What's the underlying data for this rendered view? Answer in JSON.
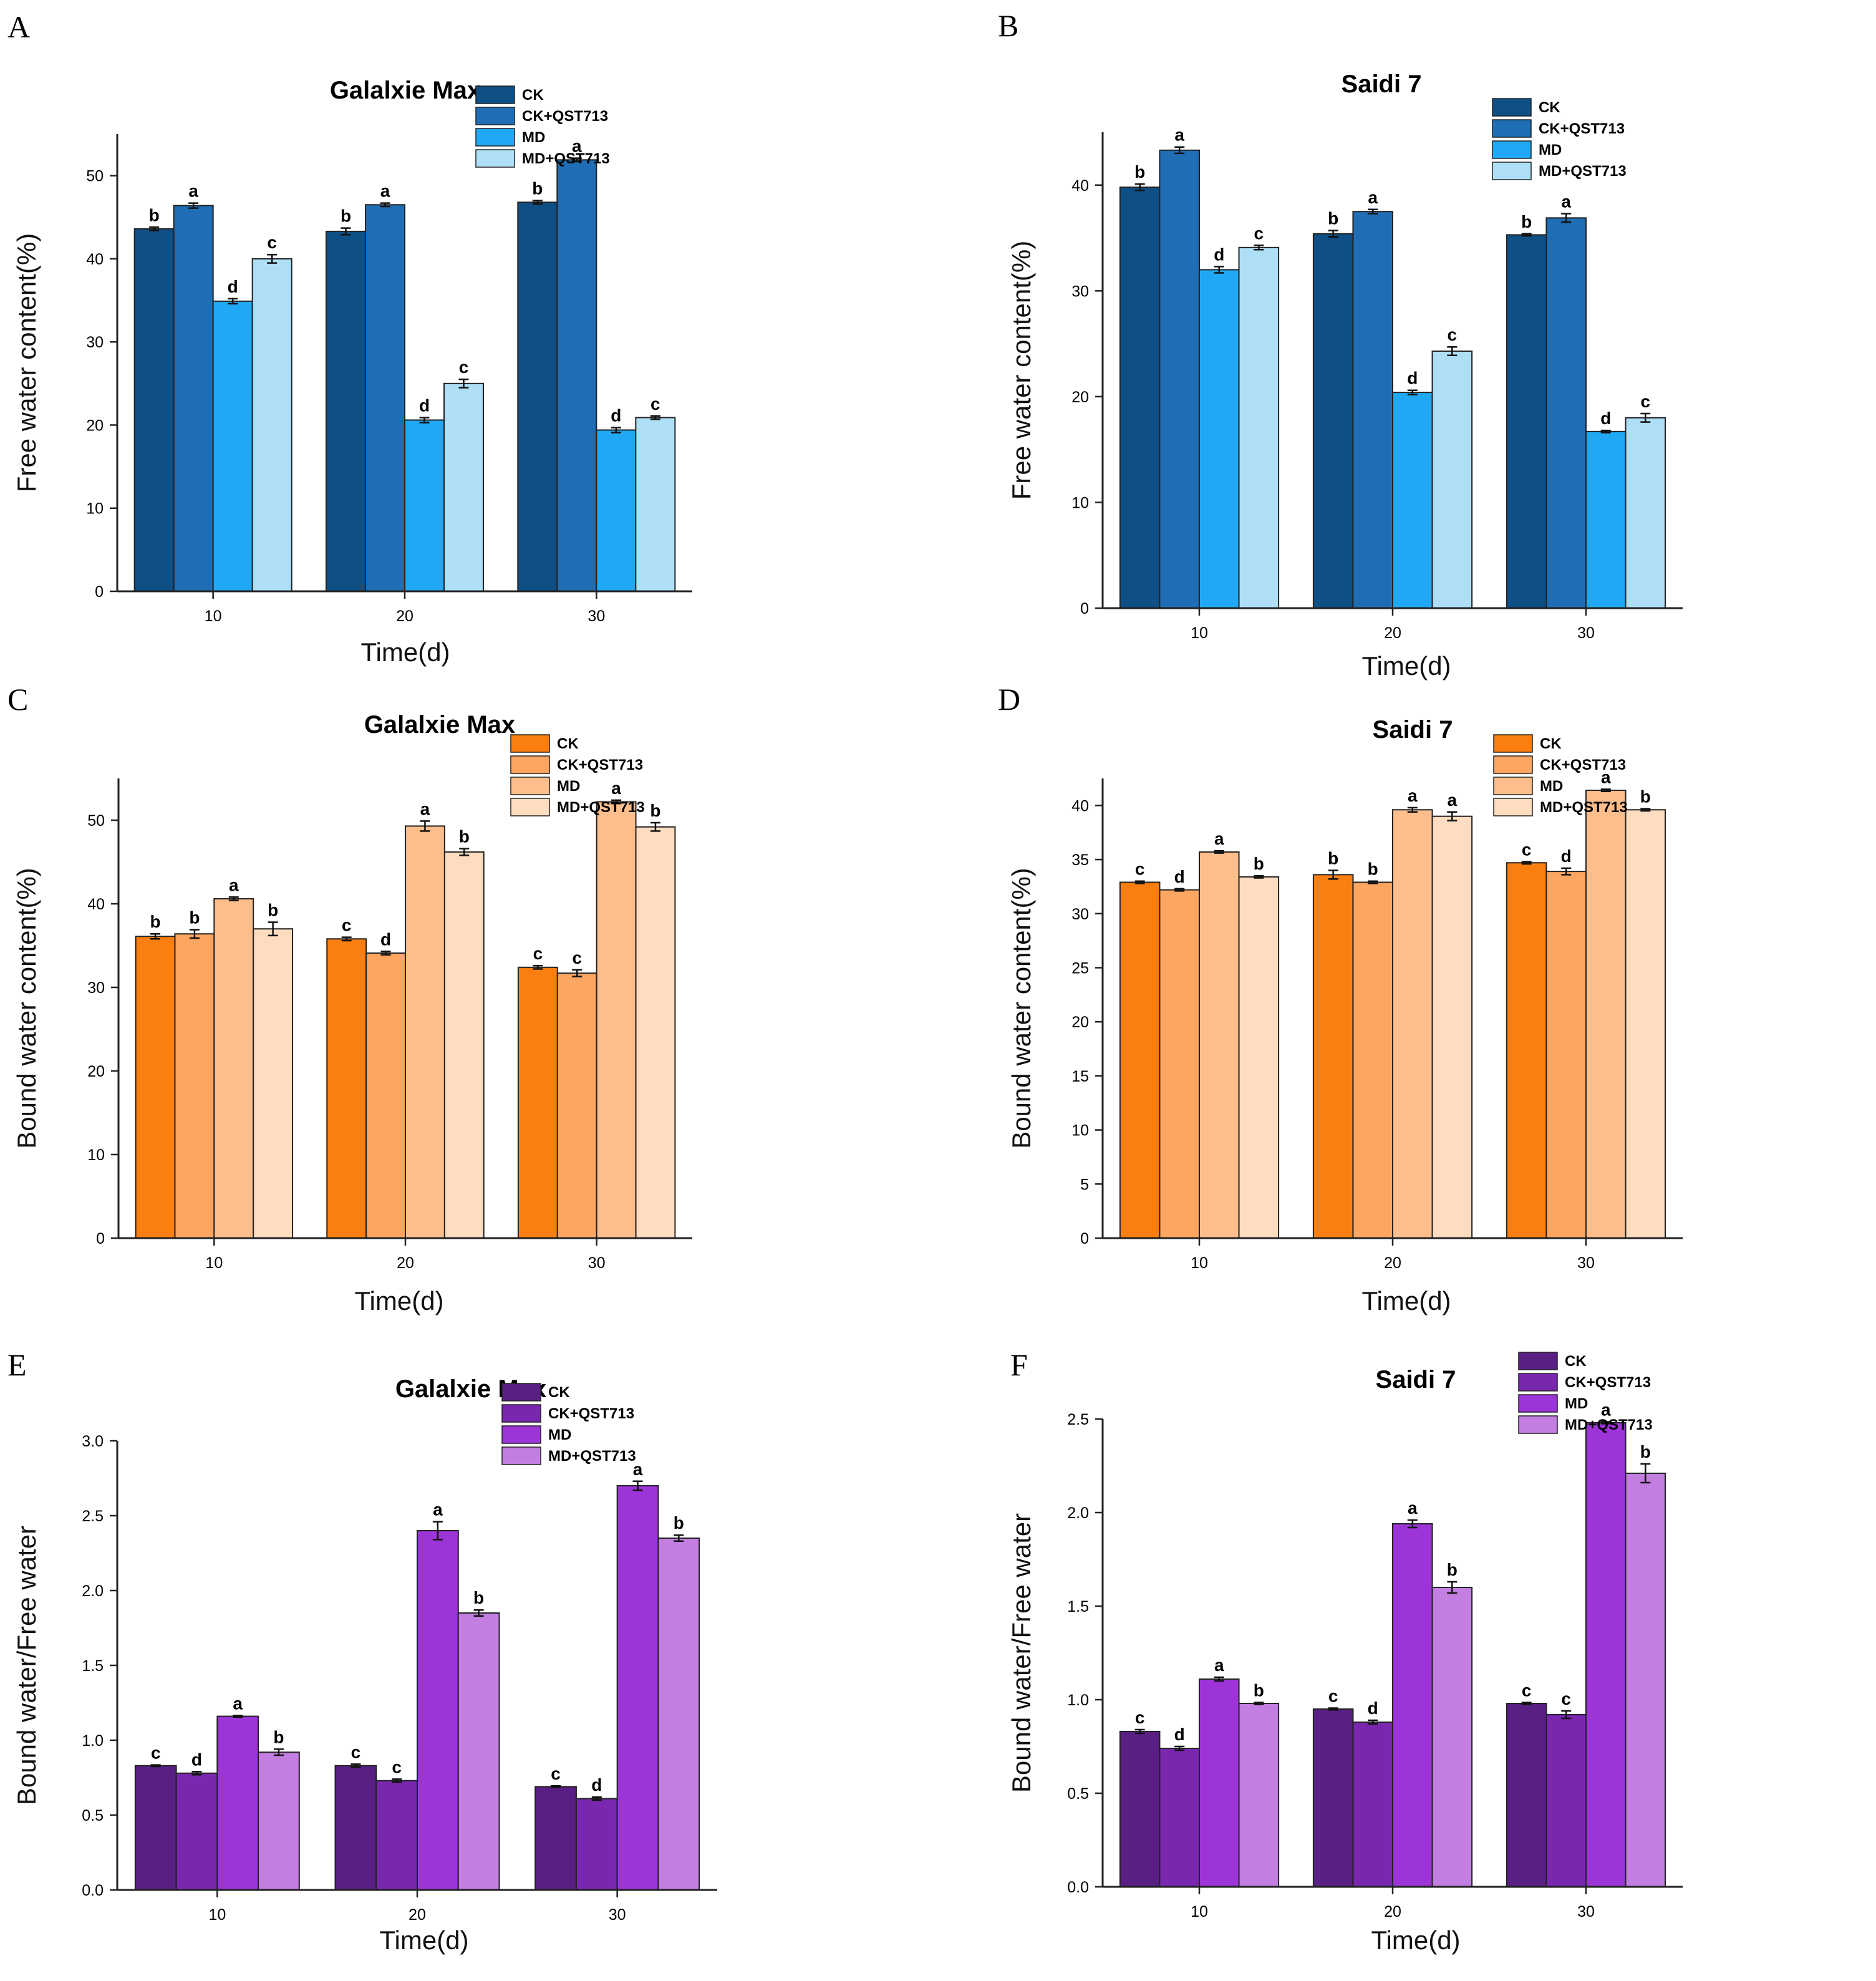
{
  "chart_data": [
    {
      "panel": "A",
      "type": "bar",
      "title": "Galalxie Max",
      "xlabel": "Time(d)",
      "ylabel": "Free water content(%)",
      "categories": [
        "10",
        "20",
        "30"
      ],
      "ylim": [
        0,
        55
      ],
      "yticks": [
        0,
        10,
        20,
        30,
        40,
        50
      ],
      "ytick_labels": [
        "0",
        "10",
        "20",
        "30",
        "40",
        "50"
      ],
      "legend": "top-right",
      "series": [
        {
          "name": "CK",
          "color": "#0e4f86",
          "values": [
            43.6,
            43.3,
            46.8
          ],
          "errors": [
            0.2,
            0.4,
            0.2
          ],
          "letters": [
            "b",
            "b",
            "b"
          ]
        },
        {
          "name": "CK+QST713",
          "color": "#1f6db4",
          "values": [
            46.4,
            46.5,
            51.9
          ],
          "errors": [
            0.3,
            0.2,
            0.2
          ],
          "letters": [
            "a",
            "a",
            "a"
          ]
        },
        {
          "name": "MD",
          "color": "#21a8f4",
          "values": [
            34.9,
            20.6,
            19.4
          ],
          "errors": [
            0.3,
            0.3,
            0.3
          ],
          "letters": [
            "d",
            "d",
            "d"
          ]
        },
        {
          "name": "MD+QST713",
          "color": "#aedff7",
          "values": [
            40.0,
            25.0,
            20.9
          ],
          "errors": [
            0.5,
            0.5,
            0.2
          ],
          "letters": [
            "c",
            "c",
            "c"
          ]
        }
      ]
    },
    {
      "panel": "B",
      "type": "bar",
      "title": "Saidi 7",
      "xlabel": "Time(d)",
      "ylabel": "Free water content(%)",
      "categories": [
        "10",
        "20",
        "30"
      ],
      "ylim": [
        0,
        45
      ],
      "yticks": [
        0,
        10,
        20,
        30,
        40
      ],
      "ytick_labels": [
        "0",
        "10",
        "20",
        "30",
        "40"
      ],
      "legend": "top-right",
      "series": [
        {
          "name": "CK",
          "color": "#0e4f86",
          "values": [
            39.8,
            35.4,
            35.3
          ],
          "errors": [
            0.3,
            0.3,
            0.1
          ],
          "letters": [
            "b",
            "b",
            "b"
          ]
        },
        {
          "name": "CK+QST713",
          "color": "#1f6db4",
          "values": [
            43.3,
            37.5,
            36.9
          ],
          "errors": [
            0.3,
            0.2,
            0.4
          ],
          "letters": [
            "a",
            "a",
            "a"
          ]
        },
        {
          "name": "MD",
          "color": "#21a8f4",
          "values": [
            32.0,
            20.4,
            16.7
          ],
          "errors": [
            0.3,
            0.2,
            0.1
          ],
          "letters": [
            "d",
            "d",
            "d"
          ]
        },
        {
          "name": "MD+QST713",
          "color": "#aedff7",
          "values": [
            34.1,
            24.3,
            18.0
          ],
          "errors": [
            0.2,
            0.4,
            0.4
          ],
          "letters": [
            "c",
            "c",
            "c"
          ]
        }
      ]
    },
    {
      "panel": "C",
      "type": "bar",
      "title": "Galalxie Max",
      "xlabel": "Time(d)",
      "ylabel": "Bound water content(%)",
      "categories": [
        "10",
        "20",
        "30"
      ],
      "ylim": [
        0,
        55
      ],
      "yticks": [
        0,
        10,
        20,
        30,
        40,
        50
      ],
      "ytick_labels": [
        "0",
        "10",
        "20",
        "30",
        "40",
        "50"
      ],
      "legend": "top-right",
      "series": [
        {
          "name": "CK",
          "color": "#fb7f10",
          "values": [
            36.1,
            35.8,
            32.4
          ],
          "errors": [
            0.3,
            0.2,
            0.2
          ],
          "letters": [
            "b",
            "c",
            "c"
          ]
        },
        {
          "name": "CK+QST713",
          "color": "#fca661",
          "values": [
            36.4,
            34.1,
            31.7
          ],
          "errors": [
            0.5,
            0.2,
            0.4
          ],
          "letters": [
            "b",
            "d",
            "c"
          ]
        },
        {
          "name": "MD",
          "color": "#fdbe8c",
          "values": [
            40.6,
            49.3,
            52.2
          ],
          "errors": [
            0.2,
            0.6,
            0.2
          ],
          "letters": [
            "a",
            "a",
            "a"
          ]
        },
        {
          "name": "MD+QST713",
          "color": "#fddcbf",
          "values": [
            37.0,
            46.2,
            49.2
          ],
          "errors": [
            0.8,
            0.4,
            0.5
          ],
          "letters": [
            "b",
            "b",
            "b"
          ]
        }
      ]
    },
    {
      "panel": "D",
      "type": "bar",
      "title": "Saidi 7",
      "xlabel": "Time(d)",
      "ylabel": "Bound water content(%)",
      "categories": [
        "10",
        "20",
        "30"
      ],
      "ylim": [
        0,
        42.5
      ],
      "yticks": [
        0,
        5,
        10,
        15,
        20,
        25,
        30,
        35,
        40
      ],
      "ytick_labels": [
        "0",
        "5",
        "10",
        "15",
        "20",
        "25",
        "30",
        "35",
        "40"
      ],
      "legend": "top-right",
      "series": [
        {
          "name": "CK",
          "color": "#fb7f10",
          "values": [
            32.9,
            33.6,
            34.7
          ],
          "errors": [
            0.1,
            0.4,
            0.1
          ],
          "letters": [
            "c",
            "b",
            "c"
          ]
        },
        {
          "name": "CK+QST713",
          "color": "#fca661",
          "values": [
            32.2,
            32.9,
            33.9
          ],
          "errors": [
            0.1,
            0.1,
            0.3
          ],
          "letters": [
            "d",
            "b",
            "d"
          ]
        },
        {
          "name": "MD",
          "color": "#fdbe8c",
          "values": [
            35.7,
            39.6,
            41.4
          ],
          "errors": [
            0.1,
            0.2,
            0.1
          ],
          "letters": [
            "a",
            "a",
            "a"
          ]
        },
        {
          "name": "MD+QST713",
          "color": "#fddcbf",
          "values": [
            33.4,
            39.0,
            39.6
          ],
          "errors": [
            0.1,
            0.4,
            0.1
          ],
          "letters": [
            "b",
            "a",
            "b"
          ]
        }
      ]
    },
    {
      "panel": "E",
      "type": "bar",
      "title": "Galalxie Max",
      "xlabel": "Time(d)",
      "ylabel": "Bound water/Free water",
      "categories": [
        "10",
        "20",
        "30"
      ],
      "ylim": [
        0,
        3.0
      ],
      "yticks": [
        0,
        0.5,
        1.0,
        1.5,
        2.0,
        2.5,
        3.0
      ],
      "ytick_labels": [
        "0.0",
        "0.5",
        "1.0",
        "1.5",
        "2.0",
        "2.5",
        "3.0"
      ],
      "legend": "top-right",
      "series": [
        {
          "name": "CK",
          "color": "#5a1f84",
          "values": [
            0.83,
            0.83,
            0.69
          ],
          "errors": [
            0.005,
            0.01,
            0.005
          ],
          "letters": [
            "c",
            "c",
            "c"
          ]
        },
        {
          "name": "CK+QST713",
          "color": "#7a27b0",
          "values": [
            0.78,
            0.73,
            0.61
          ],
          "errors": [
            0.01,
            0.01,
            0.01
          ],
          "letters": [
            "d",
            "c",
            "d"
          ]
        },
        {
          "name": "MD",
          "color": "#9d34d8",
          "values": [
            1.16,
            2.4,
            2.7
          ],
          "errors": [
            0.005,
            0.06,
            0.03
          ],
          "letters": [
            "a",
            "a",
            "a"
          ]
        },
        {
          "name": "MD+QST713",
          "color": "#c27ee0",
          "values": [
            0.92,
            1.85,
            2.35
          ],
          "errors": [
            0.02,
            0.02,
            0.02
          ],
          "letters": [
            "b",
            "b",
            "b"
          ]
        }
      ]
    },
    {
      "panel": "F",
      "type": "bar",
      "title": "Saidi 7",
      "xlabel": "Time(d)",
      "ylabel": "Bound water/Free water",
      "categories": [
        "10",
        "20",
        "30"
      ],
      "ylim": [
        0,
        2.5
      ],
      "yticks": [
        0,
        0.5,
        1.0,
        1.5,
        2.0,
        2.5
      ],
      "ytick_labels": [
        "0.0",
        "0.5",
        "1.0",
        "1.5",
        "2.0",
        "2.5"
      ],
      "legend": "top-right",
      "series": [
        {
          "name": "CK",
          "color": "#5a1f84",
          "values": [
            0.83,
            0.95,
            0.98
          ],
          "errors": [
            0.01,
            0.005,
            0.005
          ],
          "letters": [
            "c",
            "c",
            "c"
          ]
        },
        {
          "name": "CK+QST713",
          "color": "#7a27b0",
          "values": [
            0.74,
            0.88,
            0.92
          ],
          "errors": [
            0.01,
            0.01,
            0.02
          ],
          "letters": [
            "d",
            "d",
            "c"
          ]
        },
        {
          "name": "MD",
          "color": "#9d34d8",
          "values": [
            1.11,
            1.94,
            2.48
          ],
          "errors": [
            0.01,
            0.02,
            0.005
          ],
          "letters": [
            "a",
            "a",
            "a"
          ]
        },
        {
          "name": "MD+QST713",
          "color": "#c27ee0",
          "values": [
            0.98,
            1.6,
            2.21
          ],
          "errors": [
            0.005,
            0.03,
            0.05
          ],
          "letters": [
            "b",
            "b",
            "b"
          ]
        }
      ]
    }
  ]
}
